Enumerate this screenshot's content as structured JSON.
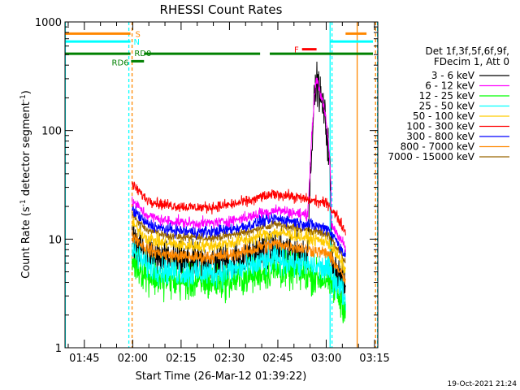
{
  "chart_data": {
    "type": "line",
    "title": "RHESSI Count Rates",
    "xlabel": "Start Time (26-Mar-12 01:39:22)",
    "ylabel": "Count Rate (s",
    "ylabel_sup1": "-1",
    "ylabel_mid": " detector segment",
    "ylabel_sup2": "-1",
    "ylabel_end": ")",
    "yscale": "log",
    "ylim": [
      1,
      1000
    ],
    "xlim_minutes_from_0145": [
      -6,
      91
    ],
    "x_ticks": [
      {
        "label": "01:45",
        "t": 0
      },
      {
        "label": "02:00",
        "t": 15
      },
      {
        "label": "02:15",
        "t": 30
      },
      {
        "label": "02:30",
        "t": 45
      },
      {
        "label": "02:45",
        "t": 60
      },
      {
        "label": "03:00",
        "t": 75
      },
      {
        "label": "03:15",
        "t": 90
      }
    ],
    "y_ticks": [
      {
        "label": "1",
        "v": 1
      },
      {
        "label": "10",
        "v": 10
      },
      {
        "label": "100",
        "v": 100
      },
      {
        "label": "1000",
        "v": 1000
      }
    ],
    "legend": {
      "header1": "Det 1f,3f,5f,6f,9f,",
      "header2": "FDecim 1, Att 0",
      "position": "right"
    },
    "series": [
      {
        "name": "3 - 6 keV",
        "color": "#000000",
        "base": 6.5,
        "noise": 0.35,
        "flare": true
      },
      {
        "name": "6 - 12 keV",
        "color": "#ff00ff",
        "base": 15,
        "noise": 0.1,
        "flare": true
      },
      {
        "name": "12 - 25 keV",
        "color": "#00ff00",
        "base": 4.2,
        "noise": 0.32
      },
      {
        "name": "25 - 50 keV",
        "color": "#00ffff",
        "base": 5.2,
        "noise": 0.26
      },
      {
        "name": "50 - 100 keV",
        "color": "#ffcc00",
        "base": 9.3,
        "noise": 0.12
      },
      {
        "name": "100 - 300 keV",
        "color": "#ff0000",
        "base": 21,
        "noise": 0.1
      },
      {
        "name": "300 - 800 keV",
        "color": "#0000ff",
        "base": 12.5,
        "noise": 0.11
      },
      {
        "name": "800 - 7000 keV",
        "color": "#ff8800",
        "base": 7.3,
        "noise": 0.12
      },
      {
        "name": "7000 - 15000 keV",
        "color": "#996600",
        "base": 11,
        "noise": 0.08
      }
    ],
    "flags": [
      {
        "label": "S",
        "color": "#ff8800",
        "level": 780,
        "segments": [
          [
            -6,
            14.3
          ],
          [
            81,
            87.5
          ]
        ]
      },
      {
        "label": "N",
        "color": "#00ffff",
        "level": 660,
        "segments": [
          [
            -6,
            14.3
          ],
          [
            76.2,
            89.5
          ]
        ]
      },
      {
        "label": "RD0",
        "color": "#008000",
        "level": 510,
        "segments": [
          [
            -6,
            14.3
          ],
          [
            18.5,
            54.5
          ],
          [
            57.5,
            89.5
          ]
        ]
      },
      {
        "label": "RD6",
        "color": "#008000",
        "level": 435,
        "segments": [
          [
            14.5,
            18.5
          ]
        ]
      },
      {
        "label": "F",
        "color": "#ff0000",
        "level": 560,
        "segments": [
          [
            67.5,
            72
          ]
        ]
      }
    ],
    "vertical_markers": [
      {
        "t": -5.9,
        "color": "#00ffff",
        "style": "solid"
      },
      {
        "t": 13.8,
        "color": "#00ffff",
        "style": "dashed"
      },
      {
        "t": 14.8,
        "color": "#ff8800",
        "style": "dashed"
      },
      {
        "t": 76.2,
        "color": "#00ffff",
        "style": "solid"
      },
      {
        "t": 76.8,
        "color": "#00ffff",
        "style": "dashed"
      },
      {
        "t": 84.6,
        "color": "#ff8800",
        "style": "solid"
      },
      {
        "t": 90.3,
        "color": "#ff8800",
        "style": "dashed"
      },
      {
        "t": 90.9,
        "color": "#00ffff",
        "style": "dashed"
      }
    ],
    "data_interval_minutes": [
      14.8,
      81
    ],
    "flare_peak": {
      "t": 72,
      "value": 290
    },
    "timestamp": "19-Oct-2021 21:24"
  }
}
